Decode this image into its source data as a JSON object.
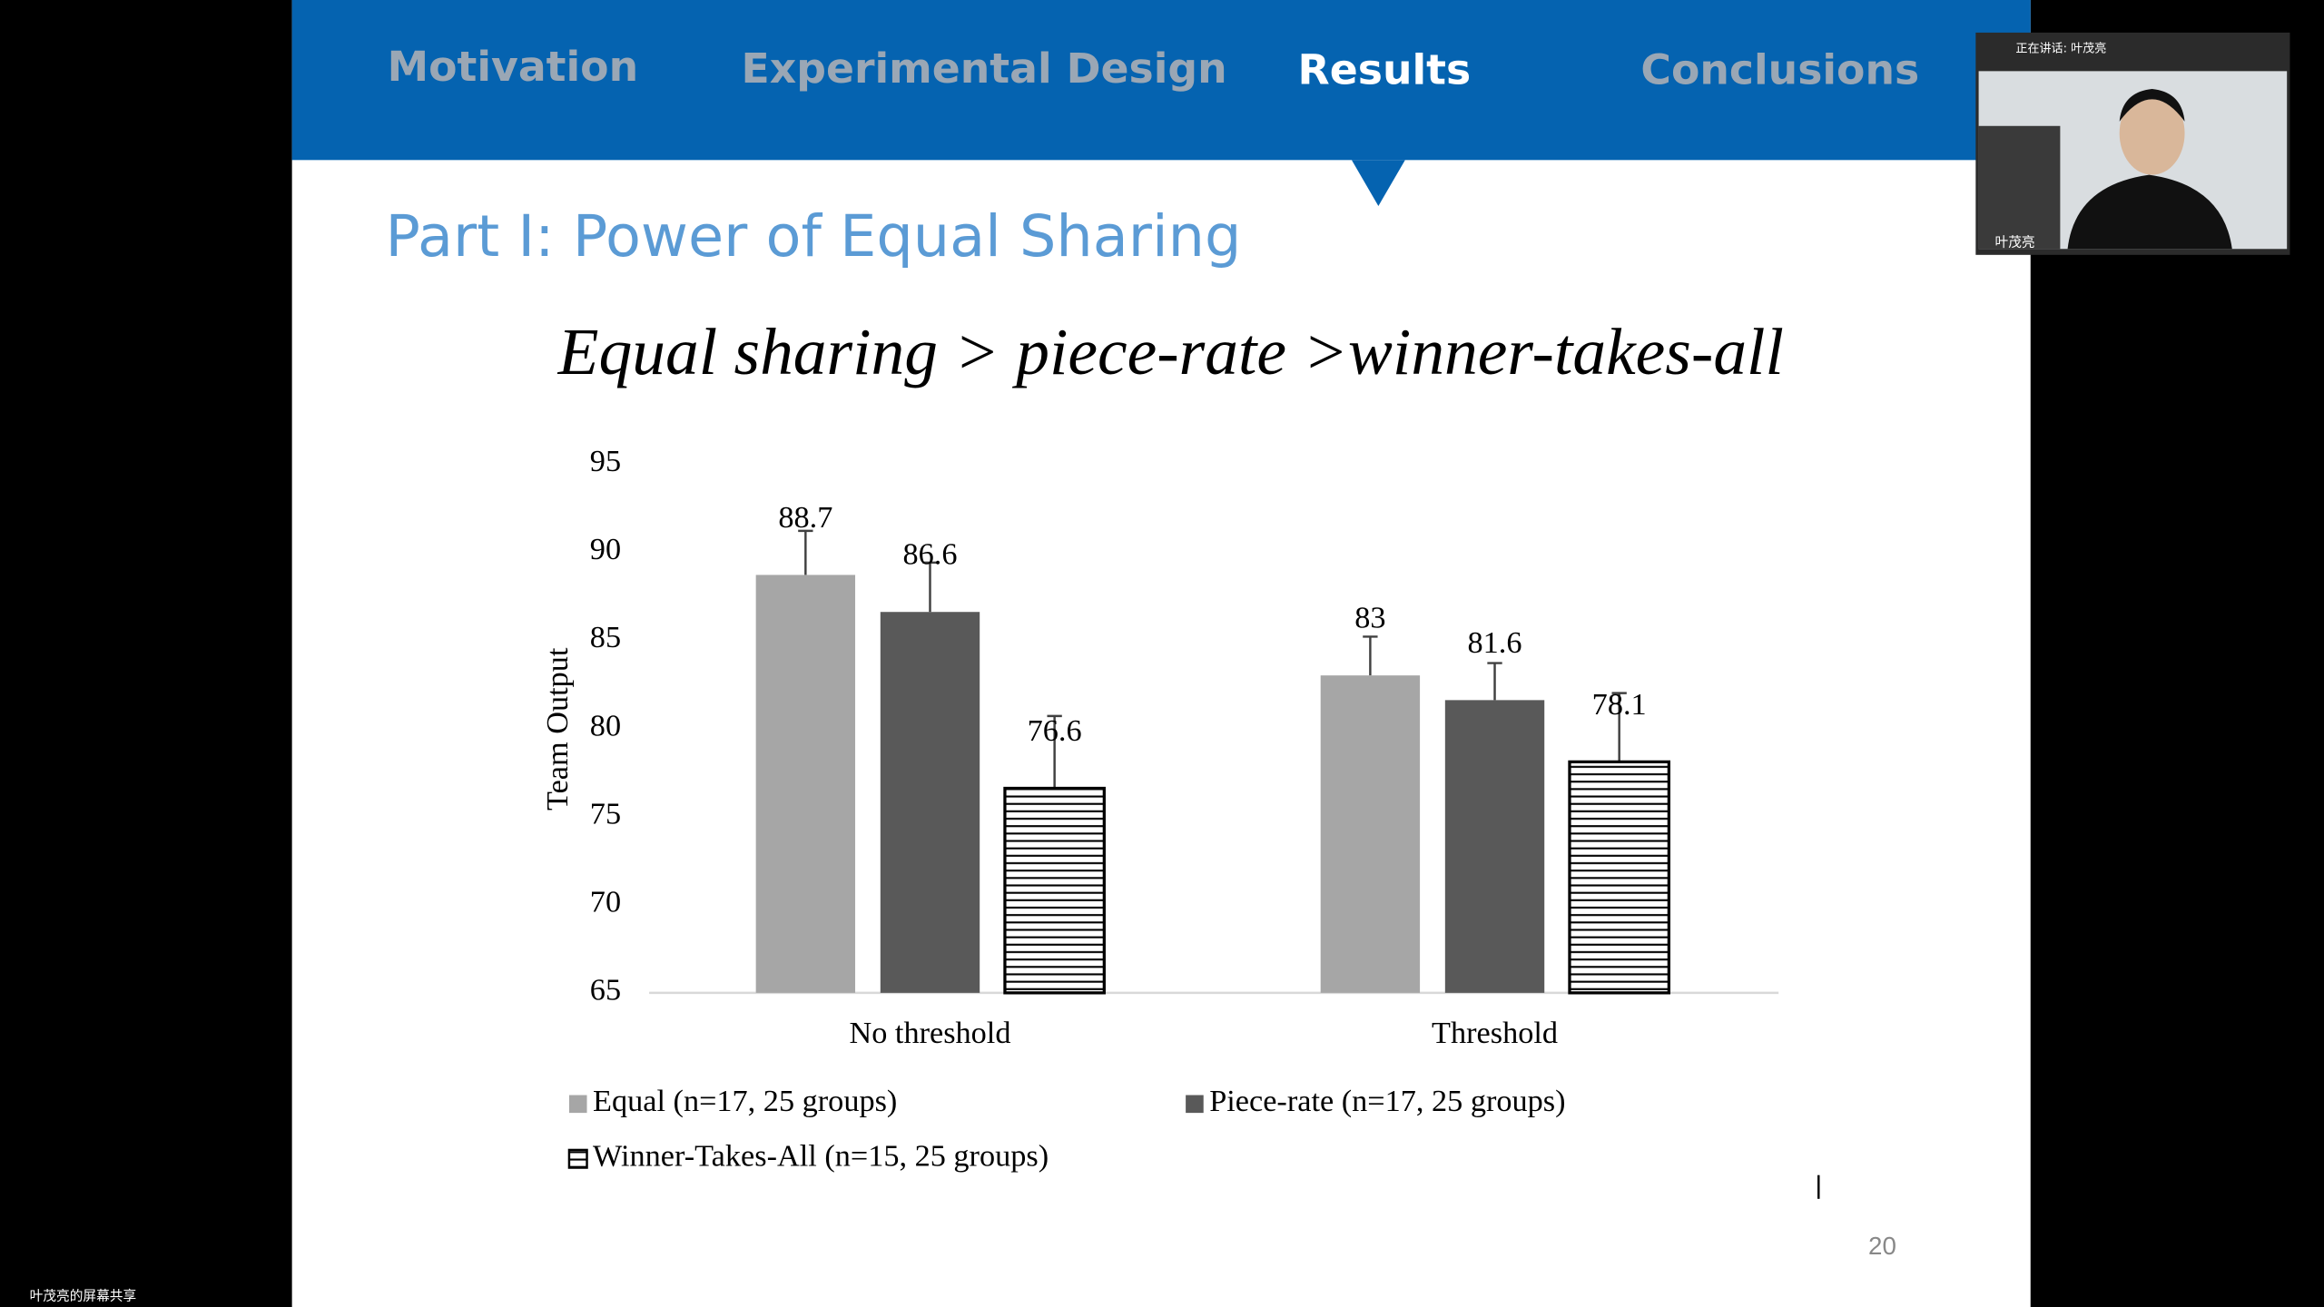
{
  "nav": {
    "items": [
      "Motivation",
      "Experimental Design",
      "Results",
      "Conclusions"
    ]
  },
  "slide": {
    "title": "Part I: Power of Equal Sharing",
    "subtitle": "Equal sharing > piece-rate >winner-takes-all",
    "page_number": "20"
  },
  "chart_data": {
    "type": "bar",
    "ylabel": "Team Output",
    "categories": [
      "No threshold",
      "Threshold"
    ],
    "ylim": [
      65,
      95
    ],
    "yticks": [
      65,
      70,
      75,
      80,
      85,
      90,
      95
    ],
    "grid": false,
    "series": [
      {
        "name": "Equal (n=17, 25 groups)",
        "color": "#a6a6a6",
        "values": [
          88.7,
          83
        ],
        "errors": [
          2.5,
          2.2
        ]
      },
      {
        "name": "Piece-rate (n=17, 25 groups)",
        "color": "#595959",
        "values": [
          86.6,
          81.6
        ],
        "errors": [
          2.8,
          2.1
        ]
      },
      {
        "name": "Winner-Takes-All (n=15, 25 groups)",
        "color": "#ffffff",
        "pattern": "horizontal-lines",
        "values": [
          76.6,
          78.1
        ],
        "errors": [
          4.1,
          3.9
        ]
      }
    ]
  },
  "video": {
    "speaking": "正在讲话: 叶茂亮",
    "name": "叶茂亮"
  },
  "share_label": "叶茂亮的屏幕共享"
}
